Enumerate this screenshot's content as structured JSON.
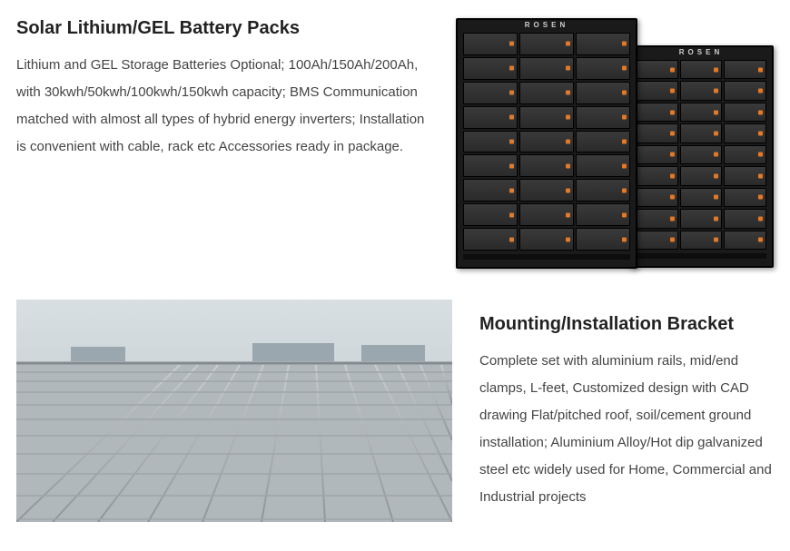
{
  "section1": {
    "heading": "Solar Lithium/GEL Battery Packs",
    "body": "Lithium and GEL Storage Batteries Optional; 100Ah/150Ah/200Ah, with 30kwh/50kwh/100kwh/150kwh capacity; BMS Communication matched with almost all types of hybrid energy inverters; Installation is convenient with cable, rack etc Accessories ready in package.",
    "rack_brand": "ROSEN",
    "rack_rows_front": 9,
    "rack_cols_front": 3,
    "rack_rows_back": 9,
    "rack_cols_back": 3,
    "module_accent_color": "#e07a2a",
    "rack_color": "#1a1a1a"
  },
  "section2": {
    "heading": "Mounting/Installation Bracket",
    "body": "Complete set with aluminium rails, mid/end clamps, L-feet,\nCustomized design with CAD drawing Flat/pitched roof, soil/cement ground installation;\nAluminium Alloy/Hot dip galvanized steel etc widely used for Home, Commercial and Industrial projects",
    "sky_color": "#d8dfe3",
    "roof_color": "#acb3b6",
    "rail_color": "#9ea6aa",
    "rail_highlight": "#c7cdd0"
  }
}
